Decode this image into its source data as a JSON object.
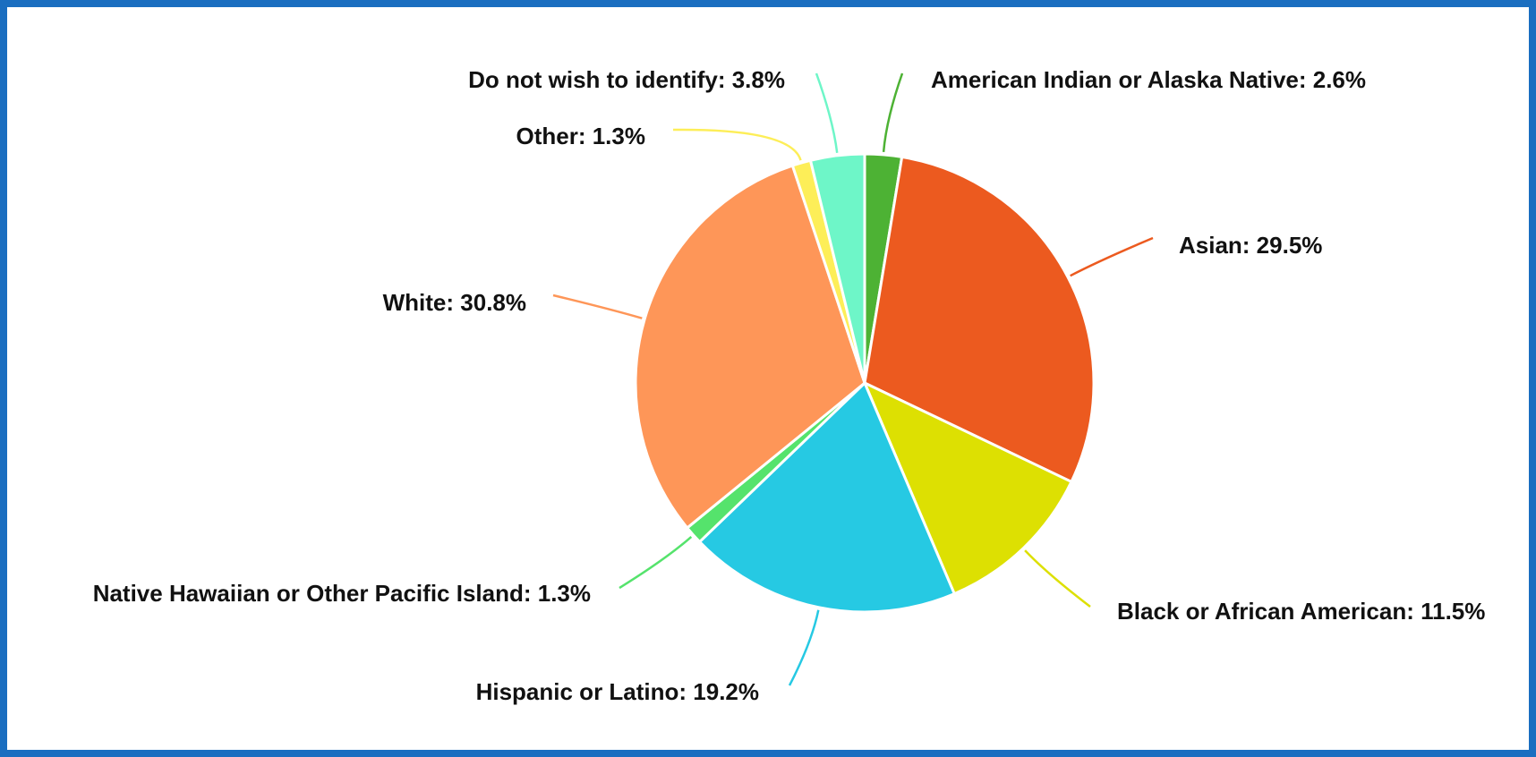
{
  "chart_data": {
    "type": "pie",
    "title": "",
    "slices": [
      {
        "name": "American Indian or Alaska Native",
        "value": 2.6,
        "label": "American Indian or Alaska Native: 2.6%",
        "color": "#4db234"
      },
      {
        "name": "Asian",
        "value": 29.5,
        "label": "Asian: 29.5%",
        "color": "#ec5a1f"
      },
      {
        "name": "Black or African American",
        "value": 11.5,
        "label": "Black or African American: 11.5%",
        "color": "#dde002"
      },
      {
        "name": "Hispanic or Latino",
        "value": 19.2,
        "label": "Hispanic or Latino: 19.2%",
        "color": "#26c9e3"
      },
      {
        "name": "Native Hawaiian or Other Pacific Island",
        "value": 1.3,
        "label": "Native Hawaiian or Other Pacific Island: 1.3%",
        "color": "#55e36c"
      },
      {
        "name": "White",
        "value": 30.8,
        "label": "White: 30.8%",
        "color": "#fe9658"
      },
      {
        "name": "Other",
        "value": 1.3,
        "label": "Other: 1.3%",
        "color": "#fdee58"
      },
      {
        "name": "Do not wish to identify",
        "value": 3.8,
        "label": "Do not wish to identify: 3.8%",
        "color": "#6ef6c8"
      }
    ],
    "start_angle": "12 o'clock",
    "direction": "clockwise",
    "legend": "none",
    "data_labels": "outside with leader lines"
  },
  "frame": {
    "border_color": "#1a6ec0"
  }
}
